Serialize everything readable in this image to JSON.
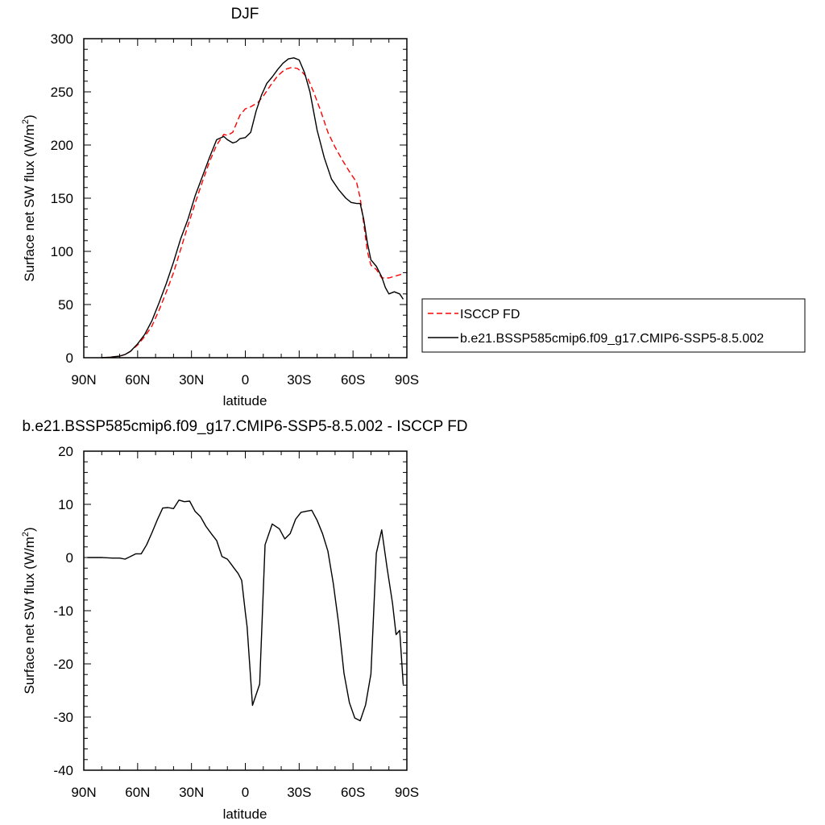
{
  "chart_data": [
    {
      "type": "line",
      "title": "DJF",
      "xlabel": "latitude",
      "ylabel": "Surface net SW flux (W/m",
      "ylabel_sup": "2",
      "ylabel_end": ")",
      "xlim": [
        90,
        -90
      ],
      "ylim": [
        0,
        300
      ],
      "x_ticks": [
        90,
        60,
        30,
        0,
        -30,
        -60,
        -90
      ],
      "x_tick_labels": [
        "90N",
        "60N",
        "30N",
        "0",
        "30S",
        "60S",
        "90S"
      ],
      "y_ticks": [
        0,
        50,
        100,
        150,
        200,
        250,
        300
      ],
      "y_tick_labels": [
        "0",
        "50",
        "100",
        "150",
        "200",
        "250",
        "300"
      ],
      "legend_position": "right",
      "series": [
        {
          "name": "ISCCP FD",
          "color": "#ff0000",
          "dash": "dashed",
          "x": [
            80,
            75,
            70,
            67,
            64,
            60,
            56,
            52,
            48,
            44,
            40,
            36,
            32,
            28,
            24,
            20,
            16,
            12,
            10,
            7,
            3,
            0,
            -3,
            -7,
            -10,
            -14,
            -18,
            -22,
            -26,
            -29,
            -32,
            -35,
            -38,
            -42,
            -46,
            -50,
            -54,
            -58,
            -62,
            -64,
            -66,
            -68,
            -70,
            -73,
            -76,
            -80,
            -84,
            -88
          ],
          "y": [
            0,
            0.5,
            1.5,
            3,
            6,
            12,
            20,
            30,
            45,
            62,
            80,
            102,
            124,
            145,
            165,
            184,
            200,
            210,
            209,
            212,
            228,
            234,
            236,
            240,
            246,
            256,
            265,
            271,
            273,
            272,
            268,
            262,
            250,
            232,
            212,
            198,
            186,
            175,
            165,
            150,
            126,
            100,
            87,
            83,
            75,
            75,
            77,
            79
          ]
        },
        {
          "name": "b.e21.BSSP585cmip6.f09_g17.CMIP6-SSP5-8.5.002",
          "color": "#000000",
          "dash": "solid",
          "x": [
            80,
            75,
            70,
            67,
            64,
            60,
            56,
            52,
            48,
            44,
            40,
            36,
            32,
            28,
            24,
            20,
            16,
            12,
            10,
            7,
            5,
            3,
            0,
            -3,
            -6,
            -9,
            -12,
            -15,
            -18,
            -21,
            -24,
            -27,
            -30,
            -33,
            -36,
            -40,
            -44,
            -48,
            -52,
            -56,
            -59,
            -62,
            -64,
            -66,
            -68,
            -70,
            -73,
            -76,
            -78,
            -80,
            -83,
            -86,
            -88
          ],
          "y": [
            0,
            0.5,
            1.5,
            3,
            6,
            13,
            22,
            35,
            52,
            70,
            90,
            112,
            130,
            152,
            170,
            188,
            205,
            208,
            205,
            202,
            203,
            206,
            207,
            212,
            232,
            247,
            258,
            264,
            271,
            277,
            281,
            282,
            280,
            268,
            250,
            214,
            188,
            168,
            158,
            150,
            146,
            145,
            145,
            130,
            108,
            92,
            86,
            76,
            66,
            60,
            62,
            60,
            55
          ]
        }
      ]
    },
    {
      "type": "line",
      "title": "b.e21.BSSP585cmip6.f09_g17.CMIP6-SSP5-8.5.002 - ISCCP FD",
      "xlabel": "latitude",
      "ylabel": "Surface net SW flux (W/m",
      "ylabel_sup": "2",
      "ylabel_end": ")",
      "xlim": [
        90,
        -90
      ],
      "ylim": [
        -40,
        20
      ],
      "x_ticks": [
        90,
        60,
        30,
        0,
        -30,
        -60,
        -90
      ],
      "x_tick_labels": [
        "90N",
        "60N",
        "30N",
        "0",
        "30S",
        "60S",
        "90S"
      ],
      "y_ticks": [
        -40,
        -30,
        -20,
        -10,
        0,
        10,
        20
      ],
      "y_tick_labels": [
        "-40",
        "-30",
        "-20",
        "-10",
        "0",
        "10",
        "20"
      ],
      "series": [
        {
          "color": "#000000",
          "dash": "solid",
          "x": [
            88,
            80,
            74,
            70,
            67,
            64,
            61,
            58,
            55,
            52,
            49,
            46,
            43,
            40,
            37,
            34,
            31,
            28,
            25,
            22,
            19,
            16,
            13,
            10,
            8,
            6,
            4,
            2,
            0,
            -1,
            -4,
            -8,
            -11,
            -15,
            -19,
            -22,
            -25,
            -28,
            -31,
            -34,
            -37,
            -40,
            -43,
            -46,
            -49,
            -52,
            -55,
            -58,
            -61,
            -64,
            -67,
            -70,
            -73,
            -76,
            -79,
            -82,
            -84,
            -86,
            -88
          ],
          "y": [
            0,
            0,
            -0.1,
            -0.1,
            -0.3,
            0.2,
            0.7,
            0.7,
            2.4,
            4.7,
            7.1,
            9.3,
            9.4,
            9.2,
            10.8,
            10.5,
            10.6,
            8.7,
            7.7,
            5.9,
            4.5,
            3.2,
            0.2,
            -0.3,
            -1.2,
            -2.1,
            -3,
            -4.3,
            -10.3,
            -13,
            -27.8,
            -23.8,
            2.4,
            6.3,
            5.4,
            3.5,
            4.5,
            7.2,
            8.5,
            8.7,
            8.9,
            7,
            4.5,
            1.2,
            -4.9,
            -12.4,
            -21.8,
            -27.3,
            -30.2,
            -30.7,
            -27.7,
            -21.9,
            0.8,
            5.2,
            -2,
            -8.6,
            -14.5,
            -13.7,
            -23.9
          ]
        }
      ]
    }
  ]
}
